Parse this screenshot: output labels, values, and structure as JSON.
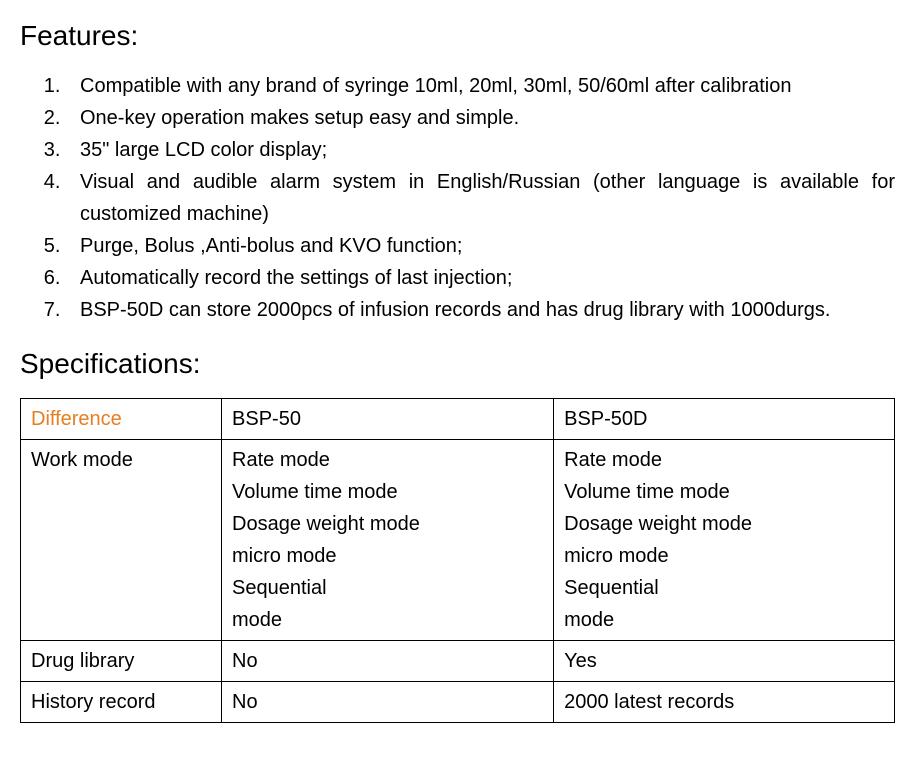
{
  "features_heading": "Features:",
  "features": [
    "Compatible with any brand of syringe 10ml, 20ml, 30ml, 50/60ml after calibration",
    "One-key operation makes setup easy and simple.",
    "35\" large LCD color display;",
    "Visual and audible alarm system in English/Russian (other language is available for customized machine)",
    "Purge, Bolus ,Anti-bolus and KVO function;",
    "Automatically record the settings of last injection;",
    "BSP-50D can store 2000pcs of infusion records and has drug library with 1000durgs."
  ],
  "specs_heading": "Specifications:",
  "table": {
    "header": {
      "c1": "Difference",
      "c2": "BSP-50",
      "c3": "BSP-50D"
    },
    "rows": [
      {
        "label": "Work mode",
        "c2_lines": [
          "Rate mode",
          "Volume time mode",
          "Dosage weight mode",
          "micro mode",
          "Sequential",
          "mode"
        ],
        "c3_lines": [
          "Rate mode",
          "Volume time mode",
          "Dosage weight mode",
          "micro mode",
          "Sequential",
          "mode"
        ]
      },
      {
        "label": "Drug library",
        "c2": "No",
        "c3": "Yes"
      },
      {
        "label": "History record",
        "c2": "No",
        "c3": "2000 latest records"
      }
    ]
  },
  "colors": {
    "accent": "#e67e22",
    "text": "#000000",
    "border": "#000000",
    "bg": "#ffffff"
  }
}
